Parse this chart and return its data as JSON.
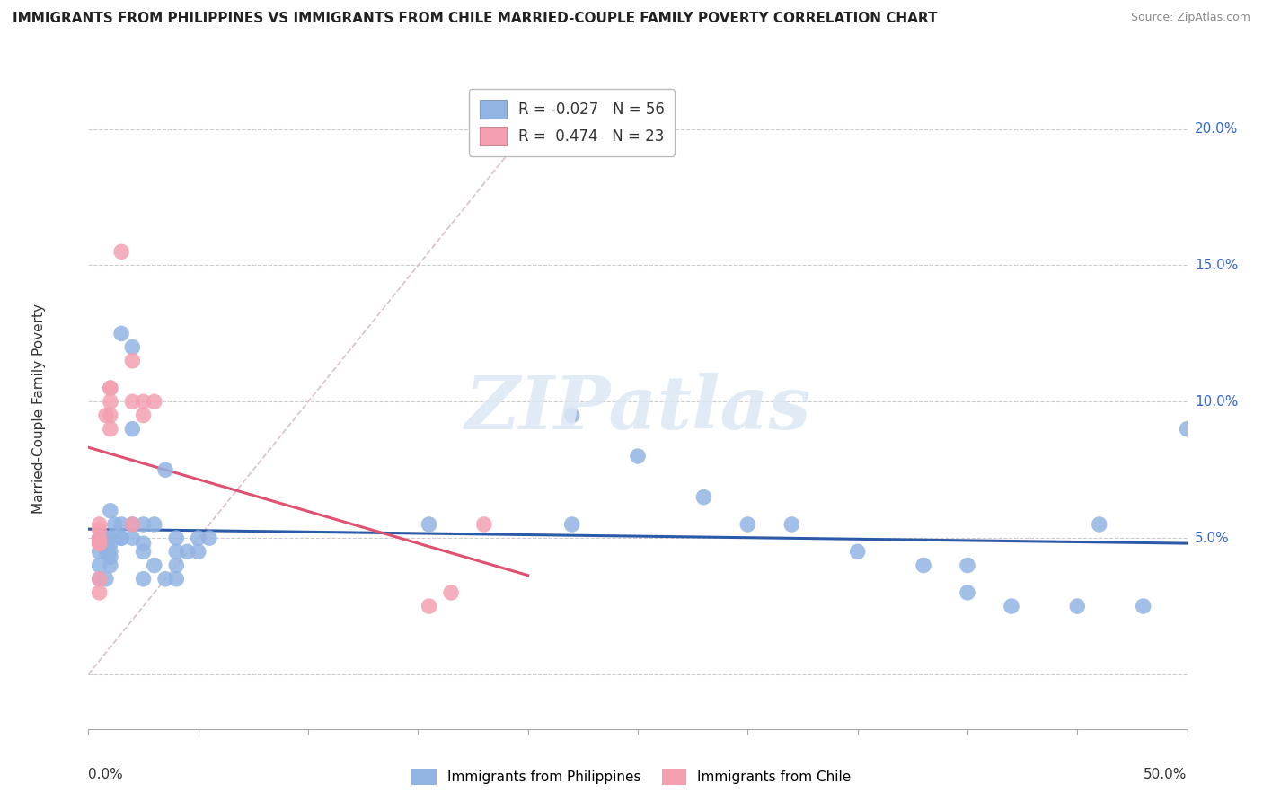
{
  "title": "IMMIGRANTS FROM PHILIPPINES VS IMMIGRANTS FROM CHILE MARRIED-COUPLE FAMILY POVERTY CORRELATION CHART",
  "source": "Source: ZipAtlas.com",
  "ylabel": "Married-Couple Family Poverty",
  "watermark": "ZIPatlas",
  "legend_r_blue": "-0.027",
  "legend_n_blue": "56",
  "legend_r_pink": "0.474",
  "legend_n_pink": "23",
  "blue_color": "#92B4E3",
  "pink_color": "#F4A0B0",
  "blue_line_color": "#2B5BA8",
  "pink_line_color": "#E05070",
  "diagonal_color": "#D8C0CC",
  "x_range": [
    0.0,
    50.0
  ],
  "y_range": [
    -2.0,
    21.5
  ],
  "y_ticks": [
    0.0,
    5.0,
    10.0,
    15.0,
    20.0
  ],
  "y_tick_labels": [
    "",
    "5.0%",
    "10.0%",
    "15.0%",
    "20.0%"
  ],
  "philippines_x": [
    1.0,
    1.2,
    1.5,
    1.0,
    0.6,
    0.5,
    1.0,
    1.5,
    1.0,
    0.5,
    0.5,
    0.8,
    1.0,
    1.0,
    0.5,
    1.0,
    0.5,
    0.8,
    2.0,
    2.0,
    1.5,
    2.0,
    2.5,
    2.0,
    1.5,
    2.5,
    3.0,
    3.5,
    2.5,
    3.0,
    2.5,
    3.5,
    4.0,
    4.5,
    4.0,
    4.0,
    4.0,
    5.0,
    5.0,
    5.5,
    22.0,
    22.0,
    15.5,
    25.0,
    28.0,
    30.0,
    32.0,
    35.0,
    38.0,
    40.0,
    40.0,
    42.0,
    45.0,
    46.0,
    48.0,
    50.0
  ],
  "philippines_y": [
    6.0,
    5.5,
    5.5,
    5.0,
    5.0,
    5.0,
    5.0,
    5.0,
    4.8,
    4.8,
    4.5,
    4.5,
    4.5,
    4.3,
    4.0,
    4.0,
    3.5,
    3.5,
    12.0,
    9.0,
    12.5,
    5.5,
    5.5,
    5.0,
    5.0,
    4.8,
    5.5,
    7.5,
    4.5,
    4.0,
    3.5,
    3.5,
    5.0,
    4.5,
    4.5,
    4.0,
    3.5,
    4.5,
    5.0,
    5.0,
    9.5,
    5.5,
    5.5,
    8.0,
    6.5,
    5.5,
    5.5,
    4.5,
    4.0,
    4.0,
    3.0,
    2.5,
    2.5,
    5.5,
    2.5,
    9.0
  ],
  "chile_x": [
    0.5,
    0.5,
    0.5,
    0.5,
    0.5,
    0.5,
    0.5,
    0.8,
    1.0,
    1.0,
    1.0,
    1.0,
    1.0,
    1.5,
    2.0,
    2.0,
    2.0,
    2.5,
    2.5,
    3.0,
    15.5,
    16.5,
    18.0
  ],
  "chile_y": [
    5.5,
    5.3,
    5.0,
    4.8,
    4.8,
    3.5,
    3.0,
    9.5,
    10.0,
    9.5,
    9.0,
    10.5,
    10.5,
    15.5,
    11.5,
    10.0,
    5.5,
    10.0,
    9.5,
    10.0,
    2.5,
    3.0,
    5.5
  ]
}
